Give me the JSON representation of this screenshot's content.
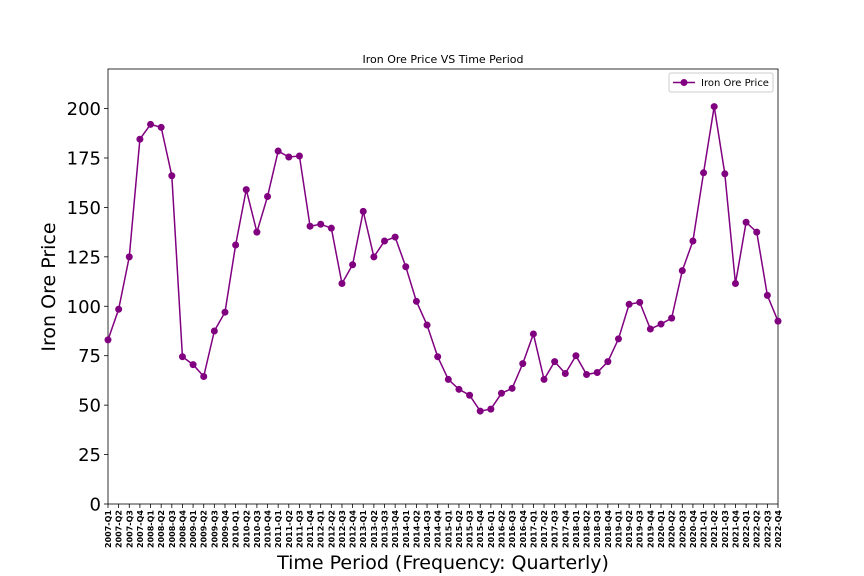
{
  "chart_data": {
    "type": "line",
    "title": "Iron Ore Price VS Time Period",
    "xlabel": "Time Period (Frequency: Quarterly)",
    "ylabel": "Iron Ore Price",
    "ylim": [
      0,
      220
    ],
    "yticks": [
      0,
      25,
      50,
      75,
      100,
      125,
      150,
      175,
      200
    ],
    "grid": false,
    "legend_position": "top-right",
    "color": "#800080",
    "categories": [
      "2007-Q1",
      "2007-Q2",
      "2007-Q3",
      "2007-Q4",
      "2008-Q1",
      "2008-Q2",
      "2008-Q3",
      "2008-Q4",
      "2009-Q1",
      "2009-Q2",
      "2009-Q3",
      "2009-Q4",
      "2010-Q1",
      "2010-Q2",
      "2010-Q3",
      "2010-Q4",
      "2011-Q1",
      "2011-Q2",
      "2011-Q3",
      "2011-Q4",
      "2012-Q1",
      "2012-Q2",
      "2012-Q3",
      "2012-Q4",
      "2013-Q1",
      "2013-Q2",
      "2013-Q3",
      "2013-Q4",
      "2014-Q1",
      "2014-Q2",
      "2014-Q3",
      "2014-Q4",
      "2015-Q1",
      "2015-Q2",
      "2015-Q3",
      "2015-Q4",
      "2016-Q1",
      "2016-Q2",
      "2016-Q3",
      "2016-Q4",
      "2017-Q1",
      "2017-Q2",
      "2017-Q3",
      "2017-Q4",
      "2018-Q1",
      "2018-Q2",
      "2018-Q3",
      "2018-Q4",
      "2019-Q1",
      "2019-Q2",
      "2019-Q3",
      "2019-Q4",
      "2020-Q1",
      "2020-Q2",
      "2020-Q3",
      "2020-Q4",
      "2021-Q1",
      "2021-Q2",
      "2021-Q3",
      "2021-Q4",
      "2022-Q1",
      "2022-Q2",
      "2022-Q3",
      "2022-Q4"
    ],
    "series": [
      {
        "name": "Iron Ore Price",
        "values": [
          83,
          98.5,
          125,
          184.5,
          192,
          190.5,
          166,
          74.5,
          70.5,
          64.5,
          87.5,
          97,
          131,
          159,
          137.5,
          155.5,
          178.5,
          175.5,
          176,
          140.5,
          141.5,
          139.5,
          111.5,
          121,
          148,
          125,
          133,
          135,
          120,
          102.5,
          90.5,
          74.5,
          63,
          58,
          55,
          47,
          48,
          56,
          58.5,
          71,
          86,
          63,
          72,
          66,
          75,
          65.5,
          66.5,
          72,
          83.5,
          101,
          102,
          88.5,
          91,
          94,
          118,
          133,
          167.5,
          201,
          167,
          111.5,
          142.5,
          137.5,
          105.5,
          92.5
        ]
      }
    ]
  }
}
